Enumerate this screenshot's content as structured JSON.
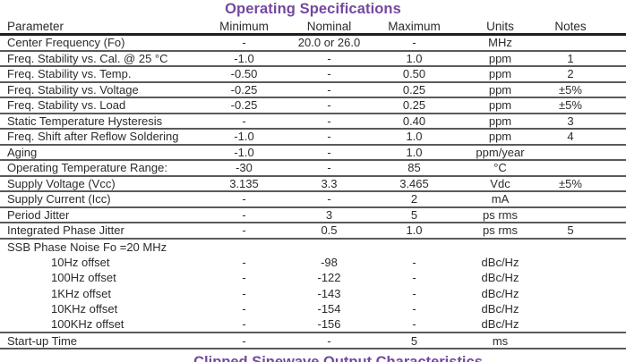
{
  "title": "Operating Specifications",
  "next_section_title": "Clipped Sinewave Output Characteristics",
  "colors": {
    "accent_purple": "#75489f",
    "text": "#2b2b2b",
    "row_line": "#595a5c",
    "header_line": "#1e1e1e"
  },
  "table": {
    "headers": [
      "Parameter",
      "Minimum",
      "Nominal",
      "Maximum",
      "Units",
      "Notes"
    ],
    "rows": [
      {
        "parameter": "Center Frequency (Fo)",
        "minimum": "-",
        "nominal": "20.0 or 26.0",
        "maximum": "-",
        "units": "MHz",
        "notes": ""
      },
      {
        "parameter": "Freq. Stability vs. Cal. @ 25 °C",
        "minimum": "-1.0",
        "nominal": "-",
        "maximum": "1.0",
        "units": "ppm",
        "notes": "1"
      },
      {
        "parameter": "Freq. Stability vs. Temp.",
        "minimum": "-0.50",
        "nominal": "-",
        "maximum": "0.50",
        "units": "ppm",
        "notes": "2"
      },
      {
        "parameter": "Freq. Stability vs. Voltage",
        "minimum": "-0.25",
        "nominal": "-",
        "maximum": "0.25",
        "units": "ppm",
        "notes": "±5%"
      },
      {
        "parameter": "Freq. Stability vs. Load",
        "minimum": "-0.25",
        "nominal": "-",
        "maximum": "0.25",
        "units": "ppm",
        "notes": "±5%"
      },
      {
        "parameter": "Static Temperature Hysteresis",
        "minimum": "-",
        "nominal": "-",
        "maximum": "0.40",
        "units": "ppm",
        "notes": "3"
      },
      {
        "parameter": "Freq. Shift after Reflow Soldering",
        "minimum": "-1.0",
        "nominal": "-",
        "maximum": "1.0",
        "units": "ppm",
        "notes": "4"
      },
      {
        "parameter": "Aging",
        "minimum": "-1.0",
        "nominal": "-",
        "maximum": "1.0",
        "units": "ppm/year",
        "notes": ""
      },
      {
        "parameter": "Operating Temperature Range:",
        "minimum": "-30",
        "nominal": "-",
        "maximum": "85",
        "units": "°C",
        "notes": ""
      },
      {
        "parameter": "Supply Voltage (Vcc)",
        "minimum": "3.135",
        "nominal": "3.3",
        "maximum": "3.465",
        "units": "Vdc",
        "notes": "±5%"
      },
      {
        "parameter": "Supply Current (Icc)",
        "minimum": "-",
        "nominal": "-",
        "maximum": "2",
        "units": "mA",
        "notes": ""
      },
      {
        "parameter": "Period Jitter",
        "minimum": "-",
        "nominal": "3",
        "maximum": "5",
        "units": "ps rms",
        "notes": ""
      },
      {
        "parameter": "Integrated Phase Jitter",
        "minimum": "-",
        "nominal": "0.5",
        "maximum": "1.0",
        "units": "ps rms",
        "notes": "5"
      },
      {
        "parameter": "SSB Phase Noise Fo =20 MHz",
        "sub_rows": [
          {
            "parameter": "10Hz offset",
            "minimum": "-",
            "nominal": "-98",
            "maximum": "-",
            "units": "dBc/Hz",
            "notes": ""
          },
          {
            "parameter": "100Hz offset",
            "minimum": "-",
            "nominal": "-122",
            "maximum": "-",
            "units": "dBc/Hz",
            "notes": ""
          },
          {
            "parameter": "1KHz offset",
            "minimum": "-",
            "nominal": "-143",
            "maximum": "-",
            "units": "dBc/Hz",
            "notes": ""
          },
          {
            "parameter": "10KHz offset",
            "minimum": "-",
            "nominal": "-154",
            "maximum": "-",
            "units": "dBc/Hz",
            "notes": ""
          },
          {
            "parameter": "100KHz offset",
            "minimum": "-",
            "nominal": "-156",
            "maximum": "-",
            "units": "dBc/Hz",
            "notes": ""
          }
        ]
      },
      {
        "parameter": "Start-up Time",
        "minimum": "-",
        "nominal": "-",
        "maximum": "5",
        "units": "ms",
        "notes": ""
      }
    ]
  }
}
